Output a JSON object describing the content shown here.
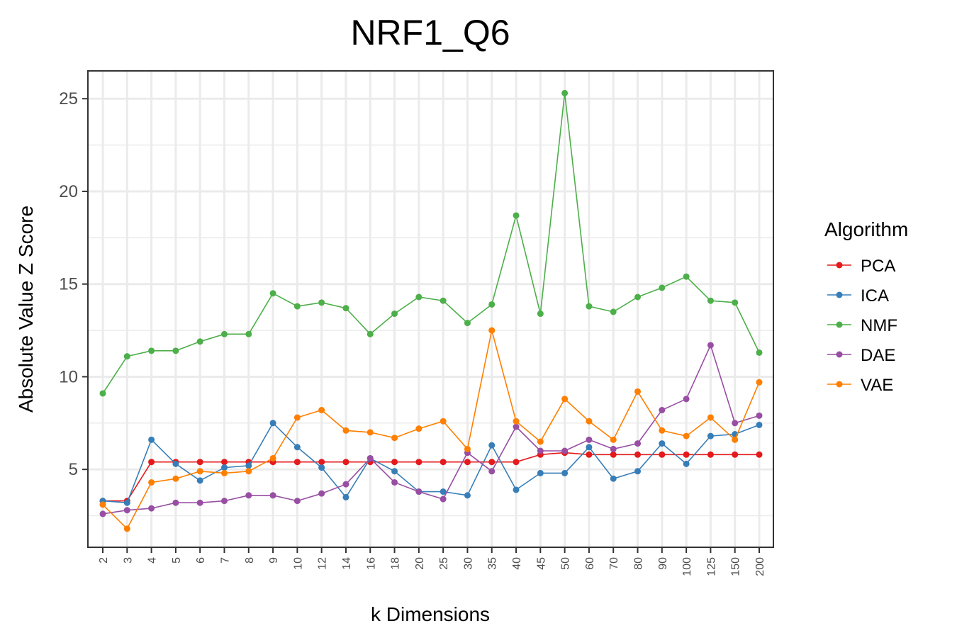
{
  "chart_data": {
    "type": "line",
    "title": "NRF1_Q6",
    "xlabel": "k Dimensions",
    "ylabel": "Absolute Value Z Score",
    "categories": [
      "2",
      "3",
      "4",
      "5",
      "6",
      "7",
      "8",
      "9",
      "10",
      "12",
      "14",
      "16",
      "18",
      "20",
      "25",
      "30",
      "35",
      "40",
      "45",
      "50",
      "60",
      "70",
      "80",
      "90",
      "100",
      "125",
      "150",
      "200"
    ],
    "ylim": [
      0.8,
      26.5
    ],
    "yticks": [
      5,
      10,
      15,
      20,
      25
    ],
    "grid": true,
    "legend": {
      "title": "Algorithm",
      "position": "right"
    },
    "series": [
      {
        "name": "PCA",
        "color": "#e41a1c",
        "values": [
          3.3,
          3.3,
          5.4,
          5.4,
          5.4,
          5.4,
          5.4,
          5.4,
          5.4,
          5.4,
          5.4,
          5.4,
          5.4,
          5.4,
          5.4,
          5.4,
          5.4,
          5.4,
          5.8,
          5.9,
          5.8,
          5.8,
          5.8,
          5.8,
          5.8,
          5.8,
          5.8,
          5.8
        ]
      },
      {
        "name": "ICA",
        "color": "#377eb8",
        "values": [
          3.3,
          3.2,
          6.6,
          5.3,
          4.4,
          5.1,
          5.2,
          7.5,
          6.2,
          5.1,
          3.5,
          5.6,
          4.9,
          3.8,
          3.8,
          3.6,
          6.3,
          3.9,
          4.8,
          4.8,
          6.2,
          4.5,
          4.9,
          6.4,
          5.3,
          6.8,
          6.9,
          7.4
        ]
      },
      {
        "name": "NMF",
        "color": "#4daf4a",
        "values": [
          9.1,
          11.1,
          11.4,
          11.4,
          11.9,
          12.3,
          12.3,
          14.5,
          13.8,
          14.0,
          13.7,
          12.3,
          13.4,
          14.3,
          14.1,
          12.9,
          13.9,
          18.7,
          13.4,
          25.3,
          13.8,
          13.5,
          14.3,
          14.8,
          15.4,
          14.1,
          14.0,
          11.3
        ]
      },
      {
        "name": "DAE",
        "color": "#984ea3",
        "values": [
          2.6,
          2.8,
          2.9,
          3.2,
          3.2,
          3.3,
          3.6,
          3.6,
          3.3,
          3.7,
          4.2,
          5.6,
          4.3,
          3.8,
          3.4,
          5.9,
          4.9,
          7.3,
          6.0,
          6.0,
          6.6,
          6.1,
          6.4,
          8.2,
          8.8,
          11.7,
          7.5,
          7.9
        ]
      },
      {
        "name": "VAE",
        "color": "#ff7f00",
        "values": [
          3.1,
          1.8,
          4.3,
          4.5,
          4.9,
          4.8,
          4.9,
          5.6,
          7.8,
          8.2,
          7.1,
          7.0,
          6.7,
          7.2,
          7.6,
          6.1,
          12.5,
          7.6,
          6.5,
          8.8,
          7.6,
          6.6,
          9.2,
          7.1,
          6.8,
          7.8,
          6.6,
          9.7
        ]
      }
    ]
  }
}
